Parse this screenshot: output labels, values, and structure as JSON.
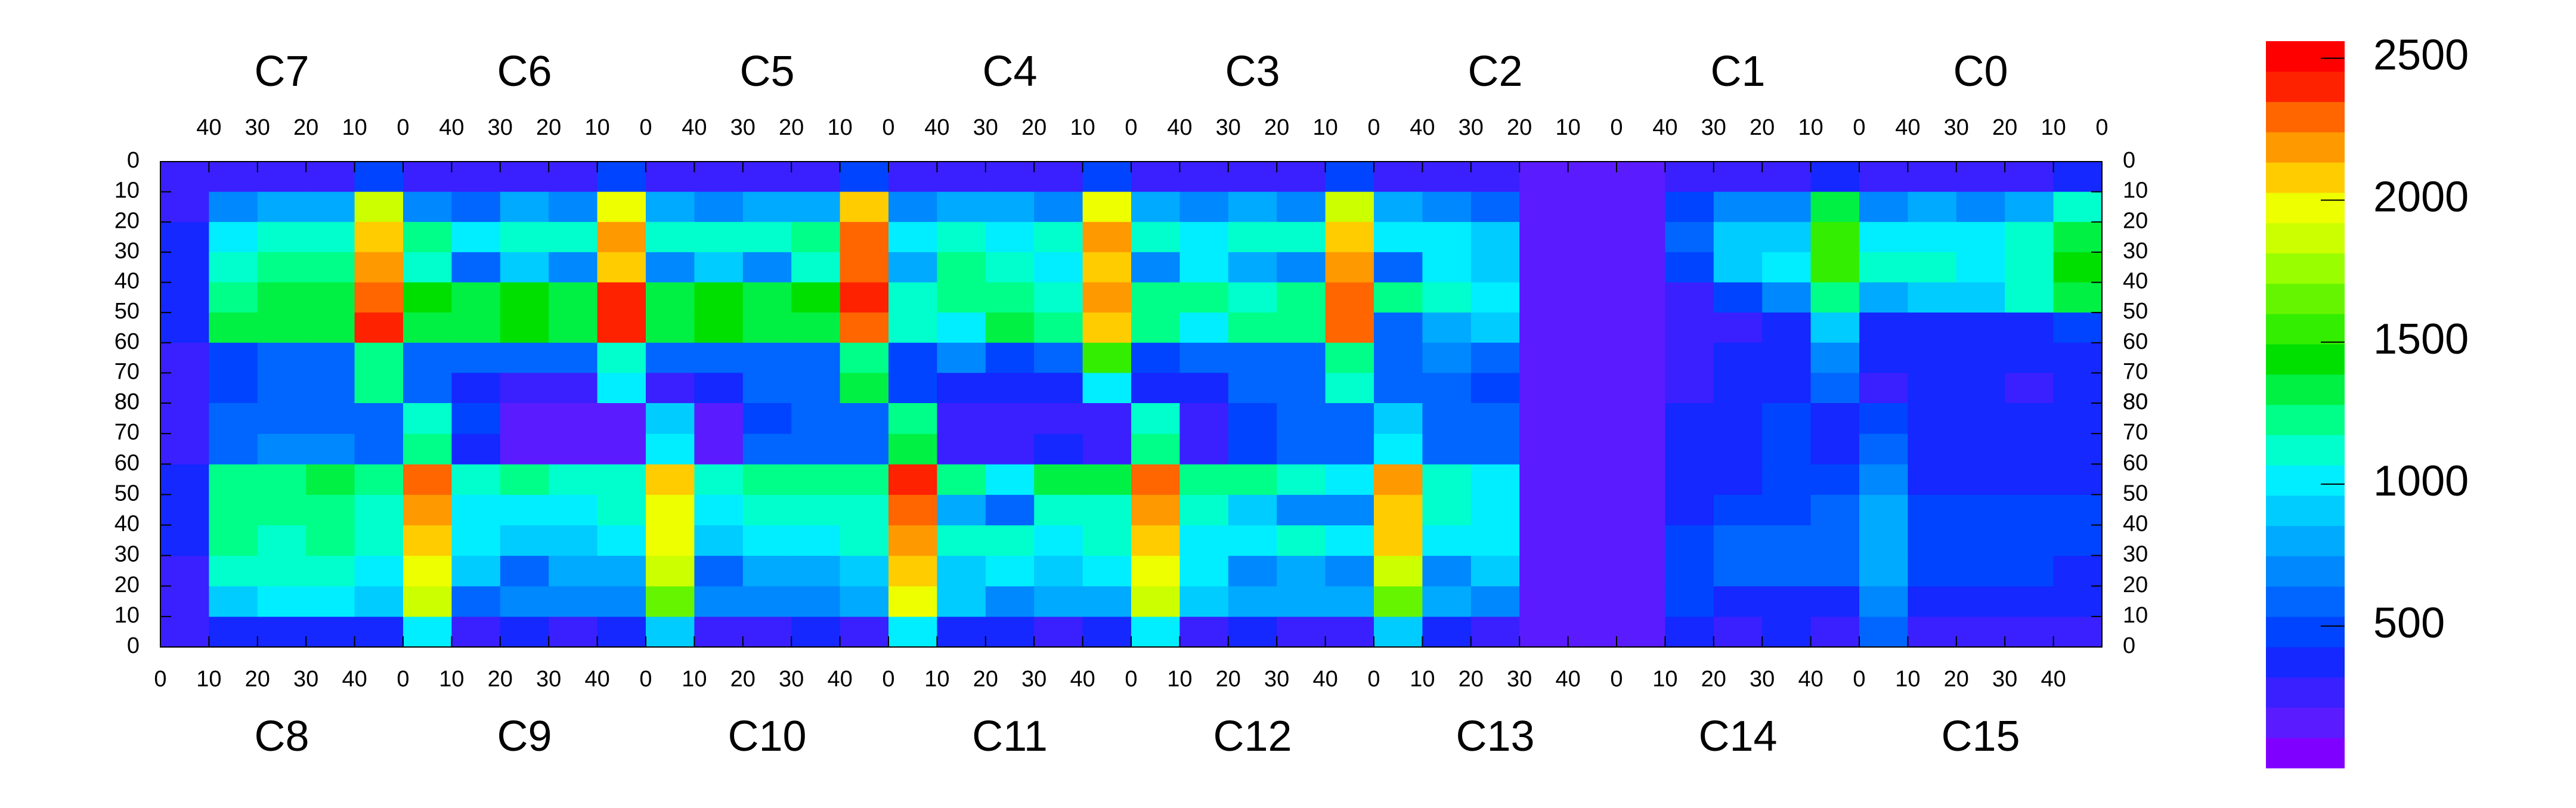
{
  "chart_data": {
    "type": "heatmap",
    "chip_xlim": [
      0,
      50
    ],
    "chip_xticks": [
      0,
      10,
      20,
      30,
      40
    ],
    "ylim": [
      0,
      80
    ],
    "yticks": [
      0,
      10,
      20,
      30,
      40,
      50,
      60,
      70,
      80
    ],
    "zlim": [
      0,
      2560
    ],
    "zticks": [
      500,
      1000,
      1500,
      2000,
      2500
    ],
    "palette": [
      "#8000ff",
      "#5a1cff",
      "#3a20ff",
      "#1428ff",
      "#0044ff",
      "#0066ff",
      "#0088ff",
      "#00aaff",
      "#00ccff",
      "#00eeff",
      "#00ffcc",
      "#00ff88",
      "#00f044",
      "#00e000",
      "#33ee00",
      "#66f500",
      "#99ff00",
      "#ccff00",
      "#eeff00",
      "#ffcc00",
      "#ff9900",
      "#ff6600",
      "#ff2200",
      "#ff0000"
    ],
    "halves": [
      {
        "chips": [
          "C7",
          "C6",
          "C5",
          "C4",
          "C3",
          "C2",
          "C1",
          "C0"
        ],
        "x_reversed": true,
        "y_origin": "top",
        "z": [
          [
            250,
            300,
            300,
            300,
            500,
            300,
            300,
            300,
            300,
            500,
            300,
            300,
            300,
            300,
            500,
            300,
            300,
            300,
            300,
            500,
            300,
            300,
            300,
            300,
            500,
            300,
            300,
            250,
            150,
            150,
            150,
            250,
            300,
            300,
            350,
            300,
            250,
            250,
            300,
            350
          ],
          [
            300,
            700,
            800,
            800,
            1900,
            700,
            600,
            800,
            700,
            2000,
            800,
            700,
            800,
            800,
            2100,
            700,
            800,
            800,
            700,
            2000,
            800,
            700,
            800,
            700,
            1900,
            800,
            700,
            600,
            150,
            150,
            150,
            500,
            700,
            700,
            1300,
            700,
            800,
            700,
            800,
            1100
          ],
          [
            350,
            1000,
            1100,
            1100,
            2100,
            1200,
            1000,
            1100,
            1100,
            2200,
            1100,
            1100,
            1100,
            1200,
            2300,
            1000,
            1100,
            1000,
            1100,
            2200,
            1100,
            1000,
            1100,
            1100,
            2100,
            1000,
            1000,
            900,
            150,
            150,
            150,
            600,
            900,
            900,
            1500,
            1000,
            1000,
            1000,
            1100,
            1300
          ],
          [
            350,
            1100,
            1200,
            1200,
            2200,
            1100,
            600,
            900,
            700,
            2100,
            700,
            900,
            700,
            1100,
            2300,
            800,
            1200,
            1100,
            1000,
            2100,
            700,
            1000,
            800,
            700,
            2200,
            600,
            1000,
            900,
            150,
            150,
            150,
            500,
            900,
            1000,
            1500,
            1100,
            1100,
            1000,
            1100,
            1400
          ],
          [
            350,
            1200,
            1300,
            1300,
            2300,
            1400,
            1300,
            1400,
            1300,
            2400,
            1300,
            1400,
            1300,
            1400,
            2400,
            1100,
            1200,
            1200,
            1100,
            2200,
            1200,
            1200,
            1100,
            1200,
            2300,
            1200,
            1100,
            1000,
            150,
            150,
            150,
            300,
            500,
            700,
            1200,
            800,
            900,
            900,
            1100,
            1300
          ],
          [
            350,
            1300,
            1300,
            1300,
            2400,
            1300,
            1300,
            1400,
            1300,
            2400,
            1300,
            1400,
            1300,
            1300,
            2300,
            1100,
            1000,
            1300,
            1200,
            2100,
            1200,
            1000,
            1200,
            1200,
            2300,
            600,
            800,
            900,
            150,
            150,
            150,
            250,
            300,
            350,
            900,
            350,
            350,
            350,
            350,
            500
          ],
          [
            300,
            500,
            600,
            600,
            1200,
            600,
            600,
            600,
            600,
            1100,
            600,
            600,
            600,
            600,
            1200,
            500,
            700,
            500,
            600,
            1500,
            500,
            600,
            600,
            600,
            1200,
            600,
            700,
            600,
            150,
            150,
            150,
            250,
            350,
            350,
            700,
            350,
            400,
            350,
            350,
            400
          ],
          [
            300,
            500,
            550,
            550,
            1200,
            550,
            400,
            300,
            300,
            1000,
            300,
            400,
            600,
            600,
            1300,
            500,
            400,
            350,
            350,
            1000,
            350,
            400,
            600,
            600,
            1100,
            600,
            600,
            500,
            150,
            150,
            150,
            250,
            350,
            350,
            600,
            300,
            350,
            350,
            300,
            350
          ]
        ]
      },
      {
        "chips": [
          "C8",
          "C9",
          "C10",
          "C11",
          "C12",
          "C13",
          "C14",
          "C15"
        ],
        "x_reversed": false,
        "y_origin": "bottom",
        "z": [
          [
            300,
            350,
            350,
            350,
            350,
            1000,
            300,
            350,
            300,
            350,
            900,
            300,
            300,
            350,
            300,
            1000,
            350,
            350,
            300,
            350,
            1000,
            300,
            350,
            300,
            300,
            900,
            350,
            300,
            150,
            150,
            150,
            350,
            300,
            350,
            300,
            600,
            300,
            300,
            300,
            300
          ],
          [
            300,
            900,
            1000,
            1000,
            900,
            1900,
            600,
            700,
            700,
            700,
            1700,
            700,
            700,
            700,
            800,
            2000,
            900,
            700,
            800,
            800,
            1900,
            900,
            800,
            800,
            800,
            1700,
            800,
            700,
            150,
            150,
            150,
            450,
            400,
            400,
            400,
            700,
            400,
            350,
            350,
            400
          ],
          [
            300,
            1100,
            1100,
            1100,
            1000,
            2000,
            900,
            600,
            800,
            800,
            1900,
            600,
            800,
            800,
            900,
            2100,
            900,
            1000,
            900,
            1000,
            2000,
            1000,
            700,
            800,
            700,
            1900,
            700,
            900,
            150,
            150,
            150,
            500,
            600,
            600,
            600,
            800,
            500,
            500,
            500,
            400
          ],
          [
            350,
            1200,
            1100,
            1200,
            1100,
            2100,
            1000,
            900,
            900,
            1000,
            2000,
            900,
            1000,
            1000,
            1100,
            2200,
            1100,
            1100,
            1000,
            1100,
            2100,
            1000,
            1000,
            1100,
            1000,
            2100,
            1000,
            1000,
            150,
            150,
            150,
            500,
            600,
            600,
            600,
            800,
            500,
            500,
            500,
            500
          ],
          [
            350,
            1200,
            1200,
            1200,
            1100,
            2200,
            1000,
            1000,
            1000,
            1100,
            2000,
            1000,
            1100,
            1100,
            1100,
            2300,
            800,
            600,
            1100,
            1100,
            2200,
            1100,
            900,
            700,
            700,
            2100,
            1100,
            1000,
            150,
            150,
            150,
            400,
            500,
            500,
            600,
            800,
            450,
            450,
            450,
            450
          ],
          [
            350,
            1200,
            1200,
            1300,
            1200,
            2300,
            1100,
            1200,
            1100,
            1100,
            2100,
            1100,
            1200,
            1200,
            1200,
            2400,
            1200,
            1000,
            1300,
            1300,
            2300,
            1200,
            1200,
            1100,
            1000,
            2200,
            1100,
            1000,
            150,
            150,
            150,
            400,
            400,
            450,
            450,
            700,
            400,
            400,
            400,
            400
          ],
          [
            300,
            600,
            650,
            650,
            600,
            1200,
            400,
            200,
            200,
            200,
            1000,
            200,
            600,
            600,
            600,
            1300,
            300,
            300,
            350,
            300,
            1200,
            300,
            500,
            600,
            600,
            1000,
            600,
            600,
            150,
            150,
            150,
            350,
            400,
            450,
            400,
            600,
            400,
            400,
            400,
            400
          ],
          [
            300,
            550,
            600,
            600,
            600,
            1100,
            500,
            200,
            200,
            200,
            900,
            200,
            500,
            550,
            550,
            1200,
            300,
            250,
            250,
            250,
            1100,
            250,
            500,
            550,
            550,
            900,
            550,
            550,
            150,
            150,
            150,
            350,
            400,
            450,
            400,
            500,
            400,
            400,
            350,
            350
          ]
        ]
      }
    ]
  }
}
